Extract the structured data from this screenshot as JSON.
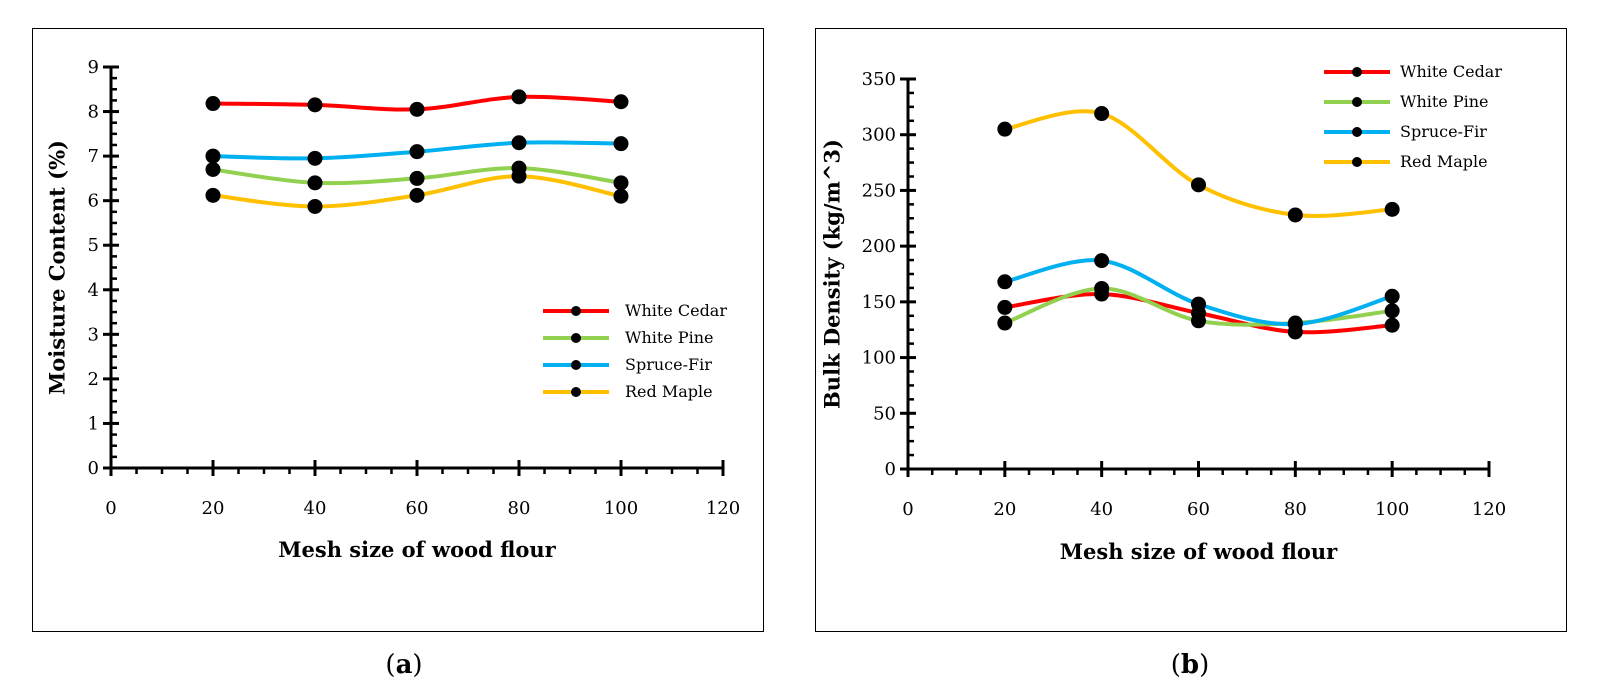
{
  "colors": {
    "white_cedar": "#ff0000",
    "white_pine": "#92d050",
    "spruce_fir": "#00b0f0",
    "red_maple": "#ffc000",
    "marker": "#000000"
  },
  "captions": {
    "a": "a",
    "b": "b"
  },
  "chart_data": [
    {
      "id": "a",
      "type": "line",
      "title": "",
      "xlabel": "Mesh size of wood flour",
      "ylabel": "Moisture Content (%)",
      "xlim": [
        0,
        120
      ],
      "ylim": [
        0,
        9
      ],
      "xticks": [
        0,
        20,
        40,
        60,
        80,
        100,
        120
      ],
      "yticks": [
        0,
        1,
        2,
        3,
        4,
        5,
        6,
        7,
        8,
        9
      ],
      "legend_position": "center-right",
      "x": [
        20,
        40,
        60,
        80,
        100
      ],
      "series": [
        {
          "name": "White Cedar",
          "color_key": "white_cedar",
          "values": [
            8.18,
            8.15,
            8.05,
            8.33,
            8.22
          ]
        },
        {
          "name": "White Pine",
          "color_key": "white_pine",
          "values": [
            6.7,
            6.4,
            6.5,
            6.73,
            6.4
          ]
        },
        {
          "name": "Spruce-Fir",
          "color_key": "spruce_fir",
          "values": [
            7.0,
            6.95,
            7.1,
            7.3,
            7.28
          ]
        },
        {
          "name": "Red Maple",
          "color_key": "red_maple",
          "values": [
            6.12,
            5.87,
            6.12,
            6.55,
            6.1
          ]
        }
      ]
    },
    {
      "id": "b",
      "type": "line",
      "title": "",
      "xlabel": "Mesh size of wood flour",
      "ylabel": "Bulk Density (kg/m^3)",
      "xlim": [
        0,
        120
      ],
      "ylim": [
        0,
        350
      ],
      "xticks": [
        0,
        20,
        40,
        60,
        80,
        100,
        120
      ],
      "yticks": [
        0,
        50,
        100,
        150,
        200,
        250,
        300,
        350
      ],
      "legend_position": "top-right",
      "x": [
        20,
        40,
        60,
        80,
        100
      ],
      "series": [
        {
          "name": "White Cedar",
          "color_key": "white_cedar",
          "values": [
            145,
            157,
            140,
            123,
            129
          ]
        },
        {
          "name": "White Pine",
          "color_key": "white_pine",
          "values": [
            131,
            162,
            133,
            131,
            142
          ]
        },
        {
          "name": "Spruce-Fir",
          "color_key": "spruce_fir",
          "values": [
            168,
            187,
            148,
            130,
            155
          ]
        },
        {
          "name": "Red Maple",
          "color_key": "red_maple",
          "values": [
            305,
            319,
            255,
            228,
            233
          ]
        }
      ]
    }
  ]
}
